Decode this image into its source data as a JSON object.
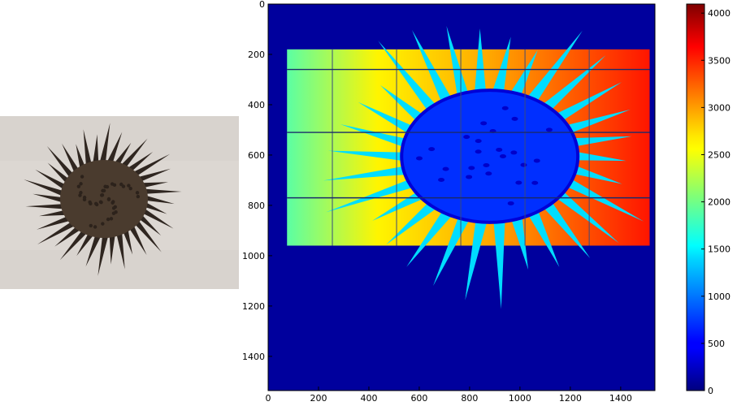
{
  "photo": {
    "subject": "spiky seed pod photographed on a pale gray background",
    "colors": {
      "background": "#d8d3ce",
      "pod": "#4a3b2e",
      "spikes": "#2f2620"
    }
  },
  "chart_data": {
    "type": "heatmap",
    "title": "",
    "xlabel": "",
    "ylabel": "",
    "colormap": "jet",
    "xlim": [
      0,
      1536
    ],
    "ylim": [
      1536,
      0
    ],
    "y_axis_inverted": true,
    "x_ticks": [
      0,
      200,
      400,
      600,
      800,
      1000,
      1200,
      1400
    ],
    "y_ticks": [
      0,
      200,
      400,
      600,
      800,
      1000,
      1200,
      1400
    ],
    "colorbar": {
      "min": 0,
      "max": 4096,
      "ticks": [
        0,
        500,
        1000,
        1500,
        2000,
        2500,
        3000,
        3500,
        4000
      ]
    },
    "background_value": 120,
    "detector_panel": {
      "x": [
        75,
        1515
      ],
      "y": [
        180,
        960
      ],
      "value_left": 1900,
      "value_right": 3500
    },
    "seed_pod": {
      "center": [
        880,
        605
      ],
      "radius": 350,
      "value": 700,
      "spike_value": 1400
    },
    "panel_gap_lines_x": [
      255,
      510,
      765,
      1020,
      1275
    ],
    "panel_gap_lines_y": [
      260,
      510,
      770
    ],
    "grid": false
  }
}
